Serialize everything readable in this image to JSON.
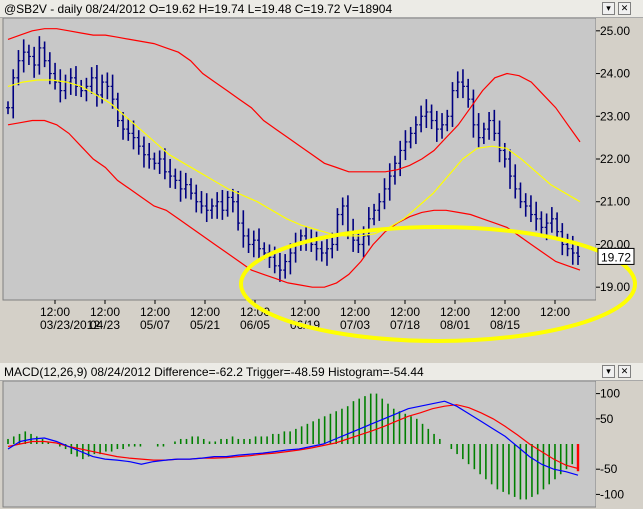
{
  "price_panel": {
    "header": "@SB2V - daily 08/24/2012 O=19.62 H=19.74 L=19.48 C=19.72 V=18904",
    "last_price_label": "19.72"
  },
  "macd_panel": {
    "header": "MACD(12,26,9) 08/24/2012 Difference=-62.2 Trigger=-48.59 Histogram=-54.44"
  },
  "colors": {
    "candles": "#000080",
    "bands": "#ff0000",
    "ma": "#ffff00",
    "highlight": "#ffff00",
    "macd_line": "#0000ff",
    "signal_line": "#ff0000",
    "histogram": "#008000"
  },
  "chart_data": [
    {
      "type": "ohlc",
      "x_tick_labels_top": [
        "12:00",
        "12:00",
        "12:00",
        "12:00",
        "12:00",
        "12:00",
        "12:00",
        "12:00",
        "12:00",
        "12:00",
        "12:00"
      ],
      "x_tick_labels_bottom": [
        "03/23/2012",
        "04/23",
        "05/07",
        "05/21",
        "06/05",
        "06/19",
        "07/03",
        "07/18",
        "08/01",
        "08/15",
        ""
      ],
      "y_ticks": [
        "25.00",
        "24.00",
        "23.00",
        "22.00",
        "21.00",
        "20.00",
        "19.00"
      ],
      "ylim": [
        18.7,
        25.3
      ],
      "closes": [
        23.2,
        23.9,
        24.3,
        24.5,
        24.4,
        24.2,
        24.6,
        24.3,
        24.0,
        23.8,
        23.6,
        23.8,
        23.9,
        23.7,
        23.6,
        23.7,
        23.9,
        23.5,
        23.8,
        23.7,
        23.4,
        22.9,
        22.7,
        22.6,
        22.5,
        22.3,
        22.1,
        22.0,
        21.9,
        22.0,
        21.7,
        21.6,
        21.5,
        21.3,
        21.4,
        21.2,
        21.0,
        20.9,
        20.8,
        20.9,
        21.0,
        20.8,
        21.1,
        21.0,
        20.5,
        20.2,
        20.0,
        20.1,
        19.9,
        19.8,
        19.7,
        19.5,
        19.4,
        19.6,
        19.8,
        20.0,
        20.2,
        20.1,
        20.0,
        19.9,
        19.8,
        19.9,
        20.0,
        20.7,
        20.9,
        20.3,
        20.1,
        20.0,
        20.2,
        20.6,
        20.8,
        21.0,
        21.3,
        21.6,
        21.9,
        22.2,
        22.4,
        22.6,
        22.8,
        23.0,
        23.1,
        22.9,
        22.7,
        22.8,
        23.0,
        23.6,
        23.8,
        23.7,
        23.4,
        22.8,
        22.5,
        22.7,
        22.9,
        22.6,
        22.2,
        22.0,
        21.6,
        21.3,
        21.0,
        20.9,
        20.7,
        20.6,
        20.4,
        20.5,
        20.6,
        20.3,
        20.0,
        19.9,
        19.8,
        19.72
      ],
      "upper_band": [
        24.8,
        24.9,
        25.0,
        25.05,
        25.05,
        25.0,
        24.95,
        24.9,
        24.9,
        24.85,
        24.8,
        24.75,
        24.7,
        24.6,
        24.5,
        24.3,
        24.0,
        23.8,
        23.6,
        23.4,
        23.2,
        22.9,
        22.7,
        22.5,
        22.3,
        22.1,
        21.9,
        21.8,
        21.7,
        21.7,
        21.7,
        21.7,
        21.75,
        21.85,
        22.0,
        22.2,
        22.5,
        22.8,
        23.2,
        23.6,
        23.9,
        24.0,
        23.95,
        23.8,
        23.5,
        23.2,
        22.8,
        22.4
      ],
      "lower_band": [
        22.8,
        22.85,
        22.9,
        22.9,
        22.8,
        22.6,
        22.3,
        22.0,
        21.8,
        21.5,
        21.3,
        21.1,
        20.9,
        20.8,
        20.6,
        20.4,
        20.2,
        20.0,
        19.8,
        19.6,
        19.4,
        19.3,
        19.2,
        19.1,
        19.05,
        19.0,
        19.0,
        19.1,
        19.3,
        19.6,
        20.0,
        20.3,
        20.5,
        20.65,
        20.75,
        20.8,
        20.8,
        20.75,
        20.7,
        20.6,
        20.5,
        20.4,
        20.2,
        20.0,
        19.8,
        19.6,
        19.5,
        19.4
      ],
      "moving_average": [
        23.7,
        23.8,
        23.85,
        23.85,
        23.8,
        23.7,
        23.5,
        23.3,
        23.0,
        22.7,
        22.4,
        22.1,
        21.9,
        21.7,
        21.5,
        21.3,
        21.15,
        21.0,
        20.8,
        20.6,
        20.45,
        20.35,
        20.25,
        20.2,
        20.2,
        20.25,
        20.4,
        20.6,
        20.9,
        21.2,
        21.6,
        22.0,
        22.25,
        22.3,
        22.25,
        22.0,
        21.7,
        21.4,
        21.2,
        21.0
      ]
    },
    {
      "type": "bar",
      "y_ticks": [
        "100",
        "50",
        "-50",
        "-100"
      ],
      "ylim": [
        -125,
        125
      ],
      "histogram": [
        10,
        15,
        20,
        25,
        20,
        15,
        10,
        5,
        0,
        -5,
        -10,
        -20,
        -25,
        -30,
        -25,
        -20,
        -20,
        -15,
        -15,
        -10,
        -10,
        -5,
        -5,
        -5,
        0,
        0,
        -5,
        -5,
        0,
        5,
        10,
        10,
        15,
        15,
        10,
        5,
        5,
        10,
        10,
        15,
        10,
        10,
        10,
        15,
        15,
        15,
        20,
        20,
        25,
        25,
        30,
        35,
        40,
        45,
        50,
        55,
        60,
        65,
        70,
        75,
        85,
        90,
        95,
        100,
        100,
        90,
        80,
        70,
        65,
        60,
        55,
        50,
        40,
        30,
        20,
        10,
        0,
        -10,
        -20,
        -30,
        -40,
        -50,
        -60,
        -70,
        -80,
        -90,
        -95,
        -100,
        -105,
        -110,
        -110,
        -105,
        -100,
        -90,
        -80,
        -70,
        -60,
        -50,
        -40,
        -54
      ],
      "macd_line": [
        -10,
        5,
        10,
        12,
        5,
        -5,
        -15,
        -25,
        -30,
        -32,
        -35,
        -40,
        -35,
        -32,
        -30,
        -30,
        -28,
        -25,
        -25,
        -22,
        -20,
        -18,
        -15,
        -12,
        -10,
        -5,
        0,
        10,
        20,
        30,
        40,
        50,
        60,
        70,
        75,
        80,
        85,
        75,
        60,
        45,
        30,
        15,
        -5,
        -25,
        -40,
        -50,
        -55,
        -62
      ],
      "signal_line": [
        -5,
        0,
        5,
        5,
        2,
        -5,
        -10,
        -15,
        -20,
        -25,
        -28,
        -30,
        -32,
        -32,
        -30,
        -30,
        -28,
        -28,
        -27,
        -25,
        -23,
        -20,
        -18,
        -15,
        -12,
        -8,
        -3,
        2,
        10,
        18,
        26,
        35,
        45,
        55,
        62,
        70,
        75,
        78,
        72,
        62,
        50,
        35,
        18,
        0,
        -15,
        -30,
        -42,
        -48.59
      ]
    }
  ]
}
